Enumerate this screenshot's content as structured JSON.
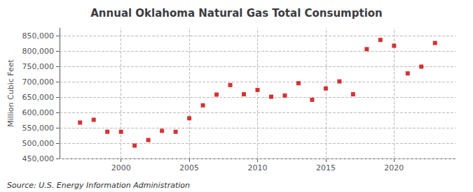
{
  "chart_data": {
    "type": "scatter",
    "title": "Annual Oklahoma Natural Gas Total Consumption",
    "ylabel": "Million Cubic Feet",
    "annotations": [
      "Source: U.S. Energy Information Administration"
    ],
    "x": [
      1997,
      1998,
      1999,
      2000,
      2001,
      2002,
      2003,
      2004,
      2005,
      2006,
      2007,
      2008,
      2009,
      2010,
      2011,
      2012,
      2013,
      2014,
      2015,
      2016,
      2017,
      2018,
      2019,
      2020,
      2021,
      2022,
      2023
    ],
    "values": [
      567000,
      576000,
      537000,
      537000,
      492000,
      510000,
      540000,
      537000,
      581000,
      623000,
      658000,
      689000,
      659000,
      673000,
      651000,
      655000,
      695000,
      641000,
      678000,
      701000,
      659000,
      806000,
      836000,
      817000,
      727000,
      749000,
      826000
    ],
    "color": "#cc0000",
    "marker": "square",
    "xlim": [
      1995.5,
      2024.5
    ],
    "xticks": [
      2000,
      2005,
      2010,
      2015,
      2020
    ],
    "ylim": [
      450000,
      875000
    ],
    "yticks": [
      {
        "value": 450000,
        "label": "450,000"
      },
      {
        "value": 500000,
        "label": "500,000"
      },
      {
        "value": 550000,
        "label": "550,000"
      },
      {
        "value": 600000,
        "label": "600,000"
      },
      {
        "value": 650000,
        "label": "650,000"
      },
      {
        "value": 700000,
        "label": "700,000"
      },
      {
        "value": 750000,
        "label": "750,000"
      },
      {
        "value": 800000,
        "label": "800,000"
      },
      {
        "value": 850000,
        "label": "850,000"
      }
    ],
    "grid": true
  }
}
